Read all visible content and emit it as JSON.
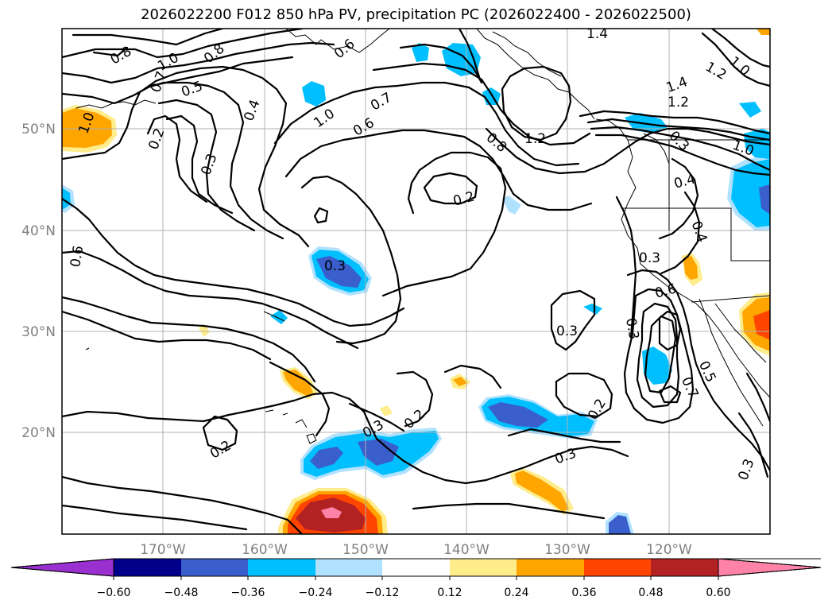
{
  "title": "2026022200 F012 850 hPa PV, precipitation PC (2026022400 - 2026022500)",
  "map": {
    "lat_labels": [
      "50°N",
      "40°N",
      "30°N",
      "20°N"
    ],
    "lon_labels": [
      "170°W",
      "160°W",
      "150°W",
      "140°W",
      "130°W",
      "120°W"
    ]
  },
  "contour_labels": [
    "0.8",
    "1.0",
    "0.8",
    "0.6",
    "1.4",
    "1.0",
    "1.2",
    "1.0",
    "1.2",
    "1.4",
    "0.5",
    "0.7",
    "0.4",
    "1.0",
    "0.7",
    "0.6",
    "0.8",
    "1.2",
    "0.3",
    "0.2",
    "1.0",
    "0.3",
    "0.4",
    "0.2",
    "0.4",
    "0.6",
    "0.3",
    "0.3",
    "0.6",
    "0.3",
    "0.3",
    "0.7",
    "0.5",
    "0.2",
    "0.3",
    "0.2",
    "0.2",
    "0.3",
    "0.3"
  ],
  "colorbar": {
    "ticks": [
      "−0.60",
      "−0.48",
      "−0.36",
      "−0.24",
      "−0.12",
      "0.12",
      "0.24",
      "0.36",
      "0.48",
      "0.60"
    ],
    "colors": [
      "#9b30d0",
      "#00008b",
      "#3a5fcd",
      "#00bfff",
      "#b0e2ff",
      "#ffffff",
      "#ffec8b",
      "#ffa500",
      "#ff4500",
      "#b22222",
      "#ff83a8"
    ]
  },
  "fill_colors": {
    "neg_light": "#b0e2ff",
    "neg_mid": "#00bfff",
    "neg_dark": "#3a5fcd",
    "pos_light": "#ffec8b",
    "pos_mid": "#ffa500",
    "pos_dark": "#ff4500",
    "pos_darker": "#b22222",
    "pos_max": "#ff83a8"
  }
}
